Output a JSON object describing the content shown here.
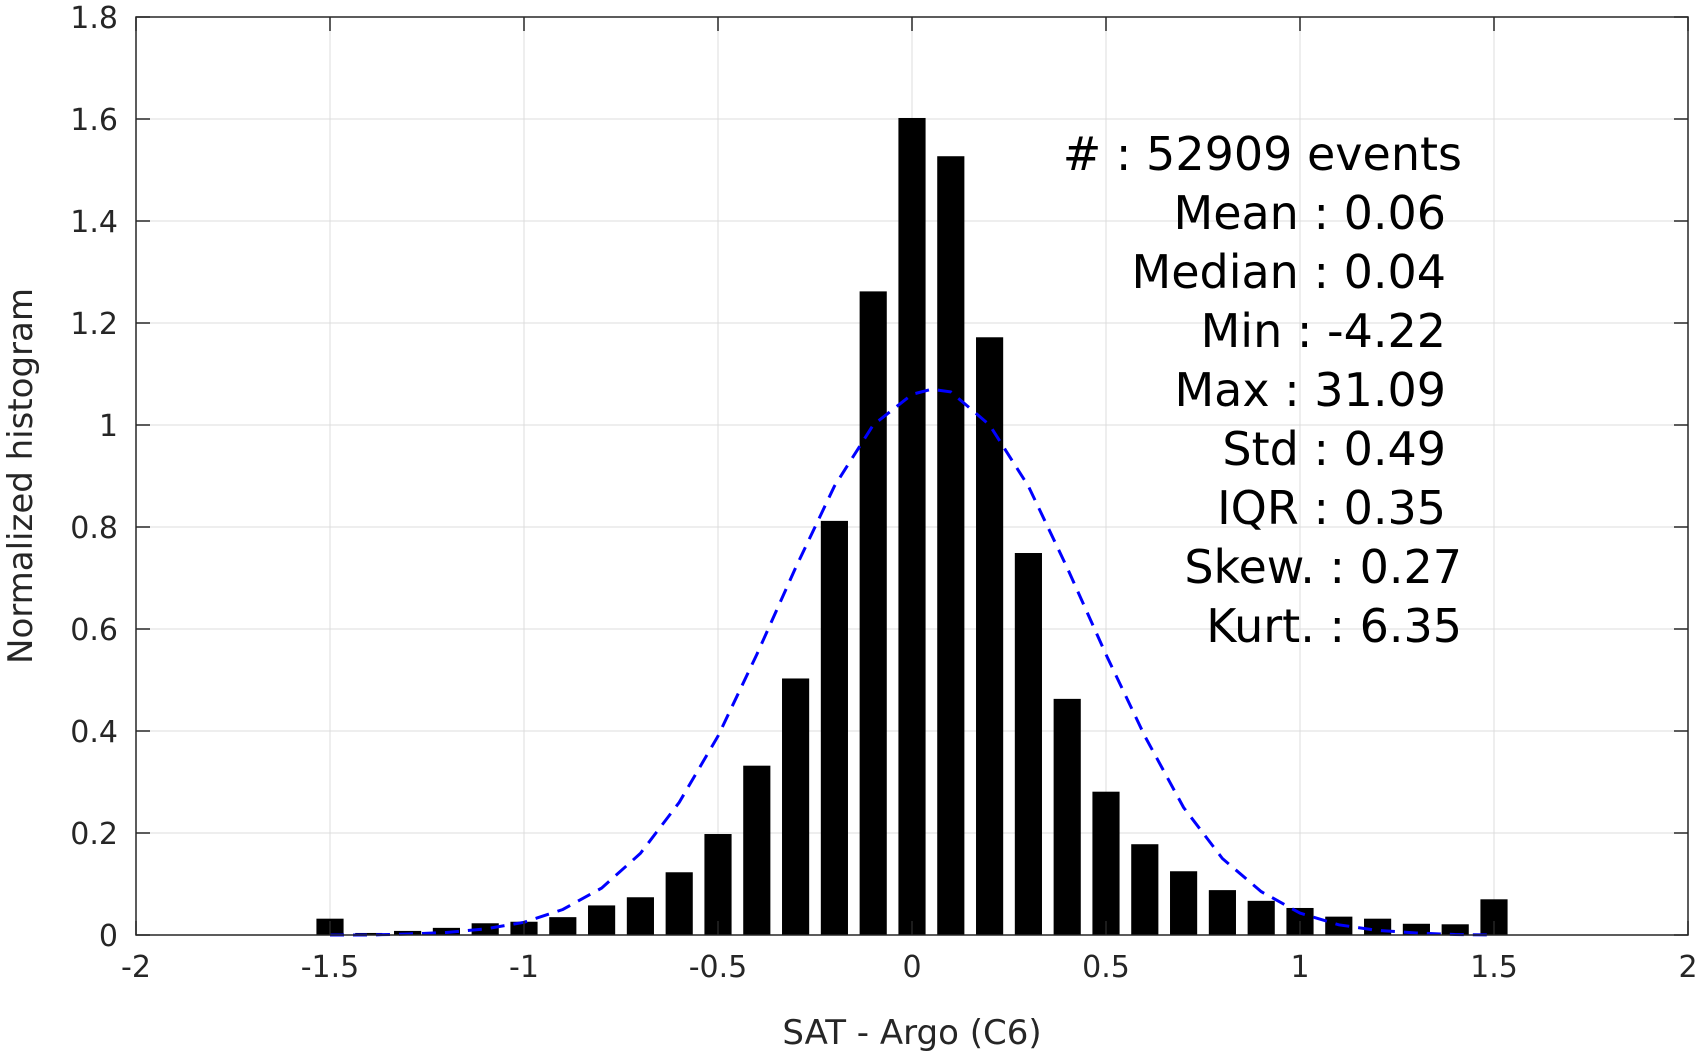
{
  "chart_data": {
    "type": "bar",
    "xlabel": "SAT - Argo (C6)",
    "ylabel": "Normalized histogram",
    "xlim": [
      -2,
      2
    ],
    "ylim": [
      0,
      1.8
    ],
    "xticks": [
      -2,
      -1.5,
      -1,
      -0.5,
      0,
      0.5,
      1,
      1.5,
      2
    ],
    "xtick_labels": [
      "-2",
      "-1.5",
      "-1",
      "-0.5",
      "0",
      "0.5",
      "1",
      "1.5",
      "2"
    ],
    "yticks": [
      0,
      0.2,
      0.4,
      0.6,
      0.8,
      1,
      1.2,
      1.4,
      1.6,
      1.8
    ],
    "ytick_labels": [
      "0",
      "0.2",
      "0.4",
      "0.6",
      "0.8",
      "1",
      "1.2",
      "1.4",
      "1.6",
      "1.8"
    ],
    "grid": true,
    "bar_width": 0.07,
    "bar_color": "#000000",
    "bars": {
      "x": [
        -1.5,
        -1.4,
        -1.3,
        -1.2,
        -1.1,
        -1.0,
        -0.9,
        -0.8,
        -0.7,
        -0.6,
        -0.5,
        -0.4,
        -0.3,
        -0.2,
        -0.1,
        0.0,
        0.1,
        0.2,
        0.3,
        0.4,
        0.5,
        0.6,
        0.7,
        0.8,
        0.9,
        1.0,
        1.1,
        1.2,
        1.3,
        1.4,
        1.5
      ],
      "values": [
        0.032,
        0.004,
        0.008,
        0.014,
        0.023,
        0.026,
        0.035,
        0.058,
        0.074,
        0.123,
        0.198,
        0.332,
        0.503,
        0.812,
        1.262,
        1.602,
        1.527,
        1.172,
        0.749,
        0.463,
        0.281,
        0.178,
        0.125,
        0.088,
        0.067,
        0.053,
        0.036,
        0.032,
        0.022,
        0.021,
        0.07
      ]
    },
    "fit_curve": {
      "style": "dashed",
      "color": "#0000ff",
      "x": [
        -1.5,
        -1.4,
        -1.3,
        -1.2,
        -1.1,
        -1.0,
        -0.9,
        -0.8,
        -0.7,
        -0.6,
        -0.5,
        -0.4,
        -0.3,
        -0.2,
        -0.1,
        0.0,
        0.05,
        0.1,
        0.2,
        0.3,
        0.4,
        0.5,
        0.6,
        0.7,
        0.8,
        0.9,
        1.0,
        1.1,
        1.2,
        1.3,
        1.4,
        1.5
      ],
      "y": [
        0.0,
        0.0,
        0.002,
        0.005,
        0.012,
        0.025,
        0.05,
        0.092,
        0.16,
        0.26,
        0.39,
        0.55,
        0.72,
        0.88,
        1.0,
        1.06,
        1.07,
        1.065,
        1.0,
        0.88,
        0.72,
        0.55,
        0.39,
        0.25,
        0.15,
        0.085,
        0.043,
        0.02,
        0.009,
        0.004,
        0.001,
        0.0
      ]
    },
    "annotations": [
      "#  : 52909 events",
      "Mean : 0.06",
      "Median : 0.04",
      "Min : -4.22",
      "Max : 31.09",
      "Std : 0.49",
      "IQR : 0.35",
      "Skew. : 0.27",
      "Kurt. : 6.35"
    ]
  }
}
